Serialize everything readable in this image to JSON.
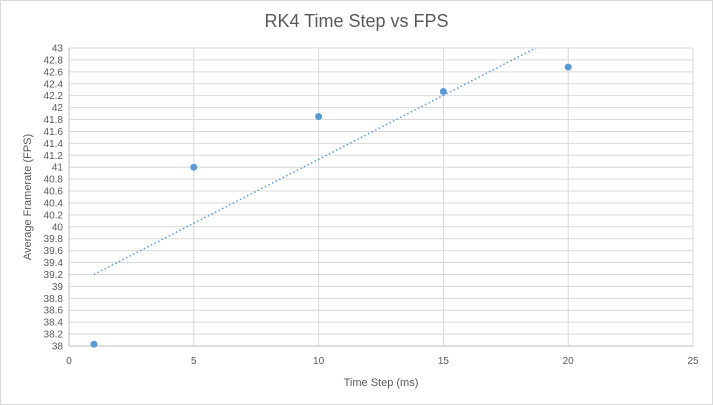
{
  "chart_data": {
    "type": "scatter",
    "title": "RK4 Time Step vs FPS",
    "xlabel": "Time Step (ms)",
    "ylabel": "Average Framerate  (FPS)",
    "xlim": [
      0,
      25
    ],
    "ylim": [
      38,
      43
    ],
    "x_ticks": [
      0,
      5,
      10,
      15,
      20,
      25
    ],
    "y_ticks": [
      38,
      38.2,
      38.4,
      38.6,
      38.8,
      39,
      39.2,
      39.4,
      39.6,
      39.8,
      40,
      40.2,
      40.4,
      40.6,
      40.8,
      41,
      41.2,
      41.4,
      41.6,
      41.8,
      42,
      42.2,
      42.4,
      42.6,
      42.8,
      43
    ],
    "grid": true,
    "series": [
      {
        "x": [
          1,
          5,
          10,
          15,
          20
        ],
        "y": [
          38.03,
          41.0,
          41.85,
          42.27,
          42.68
        ],
        "color": "#5b9bd5"
      }
    ],
    "trendline": {
      "kind": "linear",
      "style": "dotted",
      "color": "#5b9bd5",
      "x_start": 1,
      "y_start": 39.2,
      "x_end": 18.7,
      "y_end": 43
    }
  }
}
